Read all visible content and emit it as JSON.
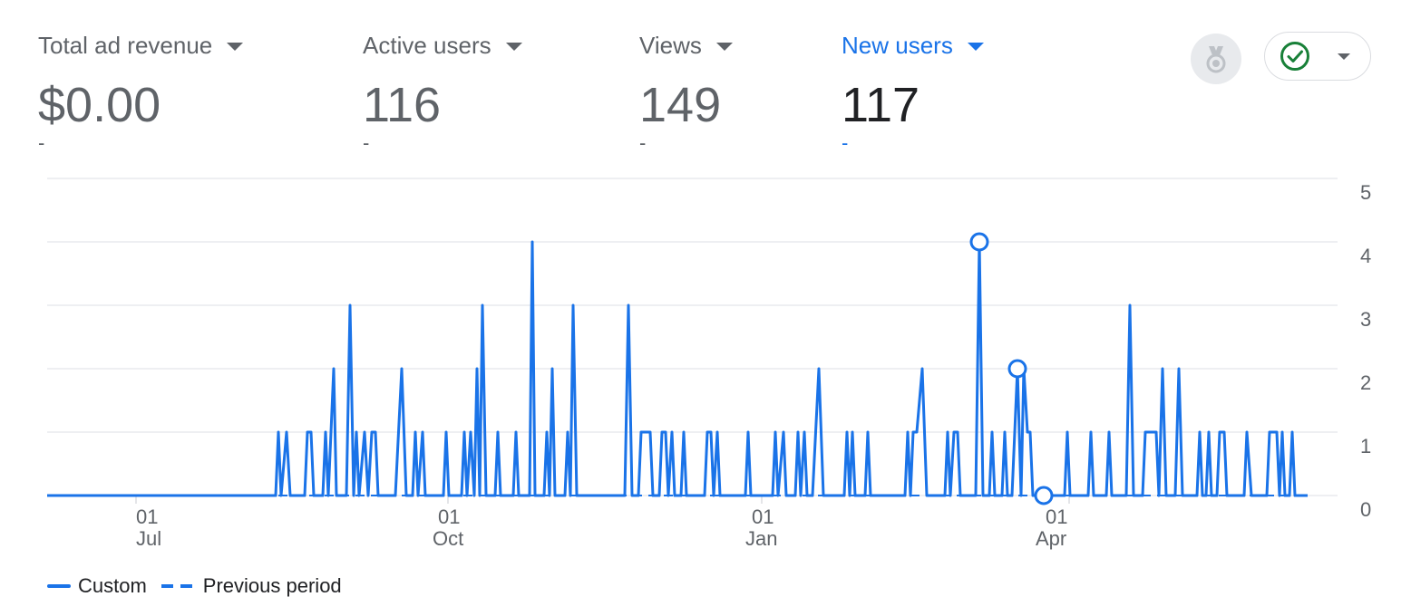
{
  "metrics": [
    {
      "label": "Total ad revenue",
      "value": "$0.00",
      "delta": "-"
    },
    {
      "label": "Active users",
      "value": "116",
      "delta": "-"
    },
    {
      "label": "Views",
      "value": "149",
      "delta": "-"
    },
    {
      "label": "New users",
      "value": "117",
      "delta": "-"
    }
  ],
  "active_metric": "New users",
  "icons": {
    "medal": "medal-icon",
    "status": "check-circle-icon"
  },
  "colors": {
    "accent": "#1a73e8",
    "status_ok": "#188038",
    "text": "#5f6368"
  },
  "legend": [
    {
      "label": "Custom",
      "style": "solid"
    },
    {
      "label": "Previous period",
      "style": "dashed"
    }
  ],
  "chart_data": {
    "type": "line",
    "x_tick_labels": [
      {
        "day": "01",
        "month": "Jul"
      },
      {
        "day": "01",
        "month": "Oct"
      },
      {
        "day": "01",
        "month": "Jan"
      },
      {
        "day": "01",
        "month": "Apr"
      }
    ],
    "y_ticks": [
      0,
      1,
      2,
      3,
      4,
      5
    ],
    "ylim": [
      0,
      5
    ],
    "grid": true,
    "legend_position": "bottom-left",
    "series": [
      {
        "name": "Custom",
        "points": [
          [
            0,
            0
          ],
          [
            252,
            0
          ],
          [
            255,
            1
          ],
          [
            258,
            0
          ],
          [
            264,
            1
          ],
          [
            268,
            0
          ],
          [
            284,
            0
          ],
          [
            287,
            1
          ],
          [
            291,
            1
          ],
          [
            294,
            0
          ],
          [
            304,
            0
          ],
          [
            307,
            1
          ],
          [
            310,
            0
          ],
          [
            316,
            2
          ],
          [
            319,
            0
          ],
          [
            330,
            0
          ],
          [
            334,
            3
          ],
          [
            338,
            0
          ],
          [
            341,
            1
          ],
          [
            344,
            0
          ],
          [
            350,
            1
          ],
          [
            354,
            0
          ],
          [
            358,
            1
          ],
          [
            362,
            1
          ],
          [
            365,
            0
          ],
          [
            384,
            0
          ],
          [
            391,
            2
          ],
          [
            396,
            0
          ],
          [
            403,
            0
          ],
          [
            406,
            1
          ],
          [
            409,
            0
          ],
          [
            414,
            1
          ],
          [
            417,
            0
          ],
          [
            437,
            0
          ],
          [
            440,
            1
          ],
          [
            443,
            0
          ],
          [
            457,
            0
          ],
          [
            460,
            1
          ],
          [
            463,
            0
          ],
          [
            467,
            1
          ],
          [
            471,
            0
          ],
          [
            474,
            2
          ],
          [
            477,
            0
          ],
          [
            480,
            3
          ],
          [
            484,
            0
          ],
          [
            494,
            0
          ],
          [
            497,
            1
          ],
          [
            500,
            0
          ],
          [
            514,
            0
          ],
          [
            517,
            1
          ],
          [
            520,
            0
          ],
          [
            532,
            0
          ],
          [
            535,
            4
          ],
          [
            538,
            0
          ],
          [
            548,
            0
          ],
          [
            551,
            1
          ],
          [
            554,
            0
          ],
          [
            557,
            2
          ],
          [
            560,
            0
          ],
          [
            571,
            0
          ],
          [
            574,
            1
          ],
          [
            577,
            0
          ],
          [
            580,
            3
          ],
          [
            584,
            0
          ],
          [
            637,
            0
          ],
          [
            641,
            3
          ],
          [
            645,
            0
          ],
          [
            652,
            0
          ],
          [
            655,
            1
          ],
          [
            665,
            1
          ],
          [
            668,
            0
          ],
          [
            675,
            0
          ],
          [
            678,
            1
          ],
          [
            682,
            1
          ],
          [
            685,
            0
          ],
          [
            689,
            1
          ],
          [
            692,
            0
          ],
          [
            699,
            0
          ],
          [
            702,
            1
          ],
          [
            705,
            0
          ],
          [
            725,
            0
          ],
          [
            728,
            1
          ],
          [
            732,
            1
          ],
          [
            735,
            0
          ],
          [
            739,
            1
          ],
          [
            742,
            0
          ],
          [
            770,
            0
          ],
          [
            773,
            1
          ],
          [
            776,
            0
          ],
          [
            800,
            0
          ],
          [
            803,
            1
          ],
          [
            806,
            0
          ],
          [
            812,
            1
          ],
          [
            815,
            0
          ],
          [
            825,
            0
          ],
          [
            828,
            1
          ],
          [
            831,
            0
          ],
          [
            835,
            1
          ],
          [
            838,
            0
          ],
          [
            844,
            0
          ],
          [
            851,
            2
          ],
          [
            856,
            0
          ],
          [
            879,
            0
          ],
          [
            882,
            1
          ],
          [
            885,
            0
          ],
          [
            888,
            1
          ],
          [
            891,
            0
          ],
          [
            902,
            0
          ],
          [
            905,
            1
          ],
          [
            908,
            0
          ],
          [
            946,
            0
          ],
          [
            949,
            1
          ],
          [
            952,
            0
          ],
          [
            955,
            1
          ],
          [
            959,
            1
          ],
          [
            965,
            2
          ],
          [
            970,
            0
          ],
          [
            990,
            0
          ],
          [
            993,
            1
          ],
          [
            996,
            0
          ],
          [
            1000,
            1
          ],
          [
            1004,
            1
          ],
          [
            1007,
            0
          ],
          [
            1024,
            0
          ],
          [
            1028,
            4
          ],
          [
            1032,
            0
          ],
          [
            1039,
            0
          ],
          [
            1042,
            1
          ],
          [
            1045,
            0
          ],
          [
            1053,
            0
          ],
          [
            1056,
            1
          ],
          [
            1059,
            0
          ],
          [
            1064,
            0
          ],
          [
            1070,
            2
          ],
          [
            1074,
            0
          ],
          [
            1077,
            2
          ],
          [
            1081,
            1
          ],
          [
            1084,
            1
          ],
          [
            1087,
            0
          ],
          [
            1122,
            0
          ],
          [
            1125,
            1
          ],
          [
            1128,
            0
          ],
          [
            1148,
            0
          ],
          [
            1151,
            1
          ],
          [
            1154,
            0
          ],
          [
            1168,
            0
          ],
          [
            1171,
            1
          ],
          [
            1174,
            0
          ],
          [
            1190,
            0
          ],
          [
            1194,
            3
          ],
          [
            1198,
            0
          ],
          [
            1208,
            0
          ],
          [
            1211,
            1
          ],
          [
            1223,
            1
          ],
          [
            1226,
            0
          ],
          [
            1230,
            2
          ],
          [
            1234,
            0
          ],
          [
            1244,
            0
          ],
          [
            1248,
            2
          ],
          [
            1252,
            0
          ],
          [
            1268,
            0
          ],
          [
            1271,
            1
          ],
          [
            1274,
            0
          ],
          [
            1278,
            0
          ],
          [
            1281,
            1
          ],
          [
            1284,
            0
          ],
          [
            1290,
            0
          ],
          [
            1293,
            1
          ],
          [
            1298,
            1
          ],
          [
            1301,
            0
          ],
          [
            1320,
            0
          ],
          [
            1323,
            1
          ],
          [
            1328,
            0
          ],
          [
            1345,
            0
          ],
          [
            1348,
            1
          ],
          [
            1356,
            1
          ],
          [
            1359,
            0
          ],
          [
            1362,
            1
          ],
          [
            1365,
            0
          ],
          [
            1370,
            0
          ],
          [
            1373,
            1
          ],
          [
            1376,
            0
          ],
          [
            1390,
            0
          ]
        ]
      },
      {
        "name": "Previous period",
        "points": [
          [
            0,
            0
          ],
          [
            1390,
            0
          ]
        ]
      }
    ],
    "highlighted_points": [
      [
        1028,
        4
      ],
      [
        1070,
        2
      ],
      [
        1099,
        0
      ]
    ]
  }
}
